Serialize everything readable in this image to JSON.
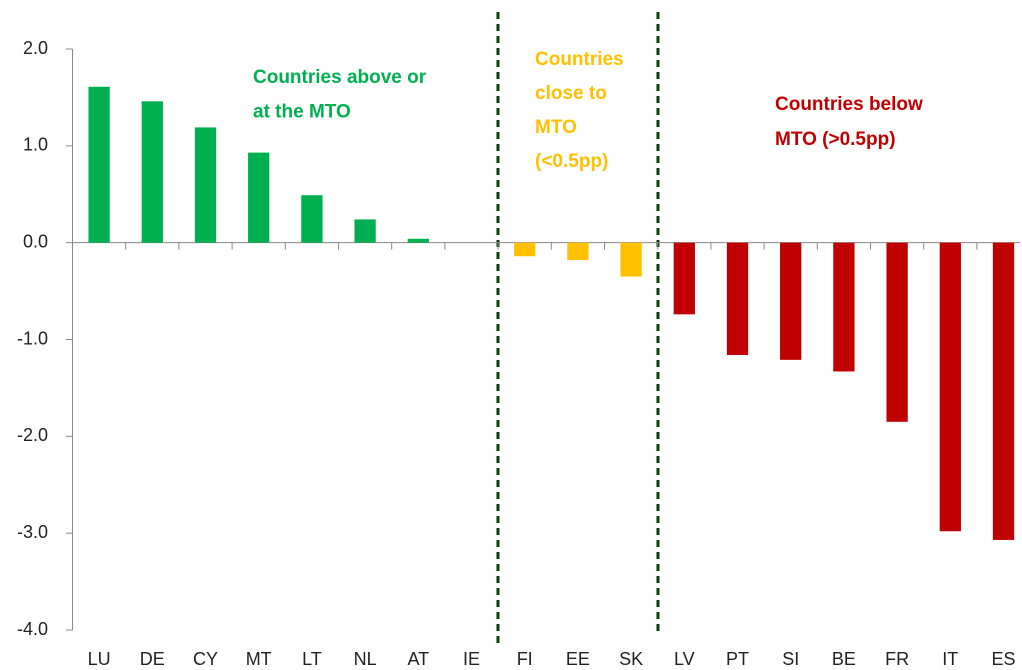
{
  "chart_data": {
    "type": "bar",
    "categories": [
      "LU",
      "DE",
      "CY",
      "MT",
      "LT",
      "NL",
      "AT",
      "IE",
      "FI",
      "EE",
      "SK",
      "LV",
      "PT",
      "SI",
      "BE",
      "FR",
      "IT",
      "ES"
    ],
    "values": [
      1.61,
      1.46,
      1.19,
      0.93,
      0.49,
      0.24,
      0.04,
      0,
      -0.14,
      -0.18,
      -0.35,
      -0.74,
      -1.16,
      -1.21,
      -1.33,
      -1.85,
      -2.98,
      -3.07
    ],
    "colors": [
      "#00b050",
      "#00b050",
      "#00b050",
      "#00b050",
      "#00b050",
      "#00b050",
      "#00b050",
      "#00b050",
      "#ffc000",
      "#ffc000",
      "#ffc000",
      "#c00000",
      "#c00000",
      "#c00000",
      "#c00000",
      "#c00000",
      "#c00000",
      "#c00000"
    ],
    "ylim": [
      -4,
      2
    ],
    "yticks": [
      {
        "value": 2,
        "label": "2.0"
      },
      {
        "value": 1,
        "label": "1.0"
      },
      {
        "value": 0,
        "label": "0.0"
      },
      {
        "value": -1,
        "label": "-1.0"
      },
      {
        "value": -2,
        "label": "-2.0"
      },
      {
        "value": -3,
        "label": "-3.0"
      },
      {
        "value": -4,
        "label": "-4.0"
      }
    ],
    "grid": false,
    "annotations": [
      {
        "lines": [
          "Countries above or",
          "at the MTO"
        ],
        "color": "#00b050"
      },
      {
        "lines": [
          "Countries",
          "close to",
          "MTO",
          "(<0.5pp)"
        ],
        "color": "#ffc000"
      },
      {
        "lines": [
          "Countries  below",
          "MTO (>0.5pp)"
        ],
        "color": "#c00000"
      }
    ]
  }
}
